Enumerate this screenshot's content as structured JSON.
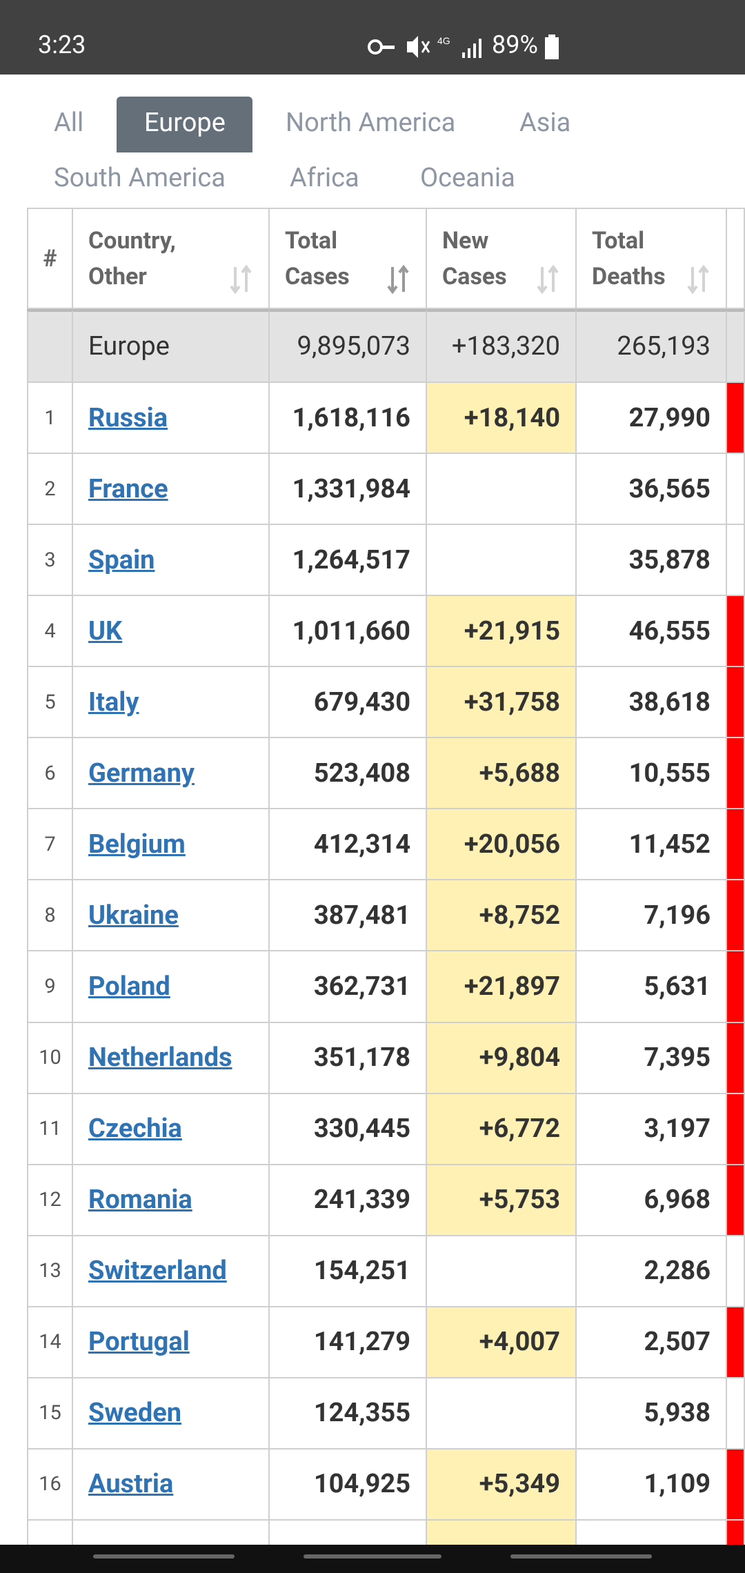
{
  "status_bar": {
    "time": "3:23",
    "battery": "89%"
  },
  "tabs": [
    "All",
    "Europe",
    "North America",
    "Asia",
    "South America",
    "Africa",
    "Oceania"
  ],
  "active_tab": 1,
  "table": {
    "headers": [
      "#",
      "Country,\nOther",
      "Total\nCases",
      "New\nCases",
      "Total\nDeaths"
    ],
    "total_row": {
      "country": "Europe",
      "total_cases": "9,895,073",
      "new_cases": "+183,320",
      "total_deaths": "265,193"
    },
    "rows": [
      {
        "rank": 1,
        "country": "Russia",
        "total_cases": "1,618,116",
        "new_cases": "+18,140",
        "total_deaths": "27,990",
        "new_deaths_highlight": true
      },
      {
        "rank": 2,
        "country": "France",
        "total_cases": "1,331,984",
        "new_cases": null,
        "total_deaths": "36,565",
        "new_deaths_highlight": false
      },
      {
        "rank": 3,
        "country": "Spain",
        "total_cases": "1,264,517",
        "new_cases": null,
        "total_deaths": "35,878",
        "new_deaths_highlight": false
      },
      {
        "rank": 4,
        "country": "UK",
        "total_cases": "1,011,660",
        "new_cases": "+21,915",
        "total_deaths": "46,555",
        "new_deaths_highlight": true
      },
      {
        "rank": 5,
        "country": "Italy",
        "total_cases": "679,430",
        "new_cases": "+31,758",
        "total_deaths": "38,618",
        "new_deaths_highlight": true
      },
      {
        "rank": 6,
        "country": "Germany",
        "total_cases": "523,408",
        "new_cases": "+5,688",
        "total_deaths": "10,555",
        "new_deaths_highlight": true
      },
      {
        "rank": 7,
        "country": "Belgium",
        "total_cases": "412,314",
        "new_cases": "+20,056",
        "total_deaths": "11,452",
        "new_deaths_highlight": true
      },
      {
        "rank": 8,
        "country": "Ukraine",
        "total_cases": "387,481",
        "new_cases": "+8,752",
        "total_deaths": "7,196",
        "new_deaths_highlight": true
      },
      {
        "rank": 9,
        "country": "Poland",
        "total_cases": "362,731",
        "new_cases": "+21,897",
        "total_deaths": "5,631",
        "new_deaths_highlight": true
      },
      {
        "rank": 10,
        "country": "Netherlands",
        "total_cases": "351,178",
        "new_cases": "+9,804",
        "total_deaths": "7,395",
        "new_deaths_highlight": true
      },
      {
        "rank": 11,
        "country": "Czechia",
        "total_cases": "330,445",
        "new_cases": "+6,772",
        "total_deaths": "3,197",
        "new_deaths_highlight": true
      },
      {
        "rank": 12,
        "country": "Romania",
        "total_cases": "241,339",
        "new_cases": "+5,753",
        "total_deaths": "6,968",
        "new_deaths_highlight": true
      },
      {
        "rank": 13,
        "country": "Switzerland",
        "total_cases": "154,251",
        "new_cases": null,
        "total_deaths": "2,286",
        "new_deaths_highlight": false
      },
      {
        "rank": 14,
        "country": "Portugal",
        "total_cases": "141,279",
        "new_cases": "+4,007",
        "total_deaths": "2,507",
        "new_deaths_highlight": true
      },
      {
        "rank": 15,
        "country": "Sweden",
        "total_cases": "124,355",
        "new_cases": null,
        "total_deaths": "5,938",
        "new_deaths_highlight": false
      },
      {
        "rank": 16,
        "country": "Austria",
        "total_cases": "104,925",
        "new_cases": "+5,349",
        "total_deaths": "1,109",
        "new_deaths_highlight": true
      }
    ]
  }
}
